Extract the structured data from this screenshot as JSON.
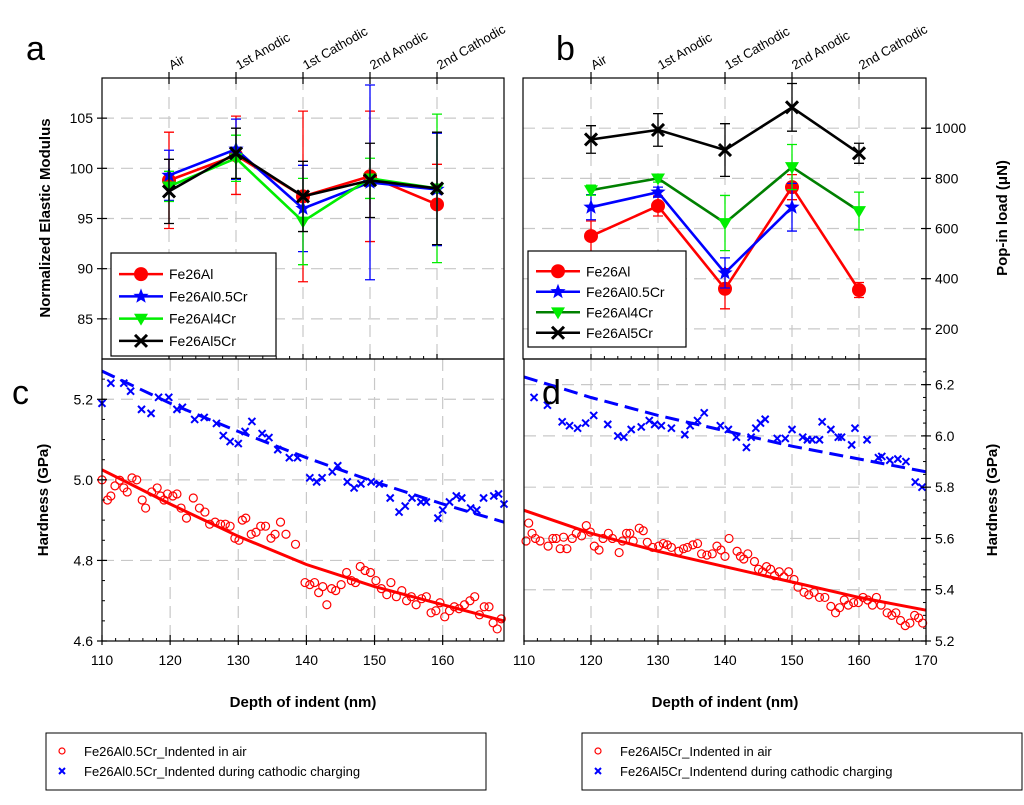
{
  "chart_data": [
    {
      "id": "a",
      "type": "line",
      "panel_label": "a",
      "title": "",
      "xlabel": "",
      "ylabel": "Normalized Elastic Modulus",
      "x_axis_position": "top",
      "y_axis_position": "left",
      "categories": [
        "Air",
        "1st Anodic",
        "1st Cathodic",
        "2nd Anodic",
        "2nd Cathodic"
      ],
      "ylim": [
        81,
        109
      ],
      "yticks": [
        85,
        90,
        95,
        100,
        105
      ],
      "grid": true,
      "legend_position": "bottom-left",
      "series": [
        {
          "name": "Fe26Al",
          "color": "#ff0000",
          "marker": "circle",
          "values": [
            98.8,
            101.3,
            97.2,
            99.2,
            96.4
          ],
          "errors": [
            4.8,
            3.9,
            8.5,
            6.5,
            4.0
          ]
        },
        {
          "name": "Fe26Al0.5Cr",
          "color": "#0000ff",
          "marker": "star",
          "values": [
            99.3,
            101.9,
            96.0,
            98.6,
            97.9
          ],
          "errors": [
            2.5,
            3.0,
            4.3,
            9.7,
            5.6
          ]
        },
        {
          "name": "Fe26Al4Cr",
          "color": "#00ee00",
          "marker": "triangle-down",
          "values": [
            98.2,
            101.0,
            94.7,
            99.0,
            98.0
          ],
          "errors": [
            1.5,
            2.3,
            4.3,
            2.0,
            7.4
          ]
        },
        {
          "name": "Fe26Al5Cr",
          "color": "#000000",
          "marker": "x",
          "values": [
            97.7,
            101.5,
            97.2,
            98.8,
            98.0
          ],
          "errors": [
            3.2,
            2.5,
            3.5,
            3.7,
            5.6
          ]
        }
      ]
    },
    {
      "id": "b",
      "type": "line",
      "panel_label": "b",
      "title": "",
      "xlabel": "",
      "ylabel": "Pop-in load (μN)",
      "x_axis_position": "top",
      "y_axis_position": "right",
      "categories": [
        "Air",
        "1st Anodic",
        "1st Cathodic",
        "2nd Anodic",
        "2nd Cathodic"
      ],
      "ylim": [
        80,
        1200
      ],
      "yticks": [
        200,
        400,
        600,
        800,
        1000
      ],
      "grid": true,
      "legend_position": "bottom-left",
      "series": [
        {
          "name": "Fe26Al",
          "color": "#ff0000",
          "line_color": "#ff0000",
          "marker": "circle",
          "values": [
            570,
            690,
            360,
            765,
            355
          ],
          "errors": [
            60,
            40,
            80,
            50,
            30
          ]
        },
        {
          "name": "Fe26Al0.5Cr",
          "color": "#0000ff",
          "line_color": "#0000ff",
          "marker": "star",
          "values": [
            685,
            745,
            423,
            685,
            null
          ],
          "errors": [
            50,
            20,
            60,
            95,
            null
          ]
        },
        {
          "name": "Fe26Al4Cr",
          "color": "#00ee00",
          "line_color": "#008000",
          "marker": "triangle-down",
          "values": [
            753,
            800,
            622,
            845,
            670
          ],
          "errors": [
            20,
            15,
            110,
            90,
            75
          ]
        },
        {
          "name": "Fe26Al5Cr",
          "color": "#000000",
          "line_color": "#000000",
          "marker": "x",
          "values": [
            955,
            993,
            913,
            1083,
            900
          ],
          "errors": [
            55,
            65,
            105,
            95,
            40
          ]
        }
      ]
    },
    {
      "id": "c",
      "type": "scatter",
      "panel_label": "c",
      "title": "",
      "xlabel": "Depth of indent (nm)",
      "ylabel": "Hardness (GPa)",
      "y_axis_position": "left",
      "xlim": [
        110,
        169
      ],
      "ylim": [
        4.6,
        5.3
      ],
      "xticks": [
        110,
        120,
        130,
        140,
        150,
        160
      ],
      "yticks": [
        4.6,
        4.8,
        5.0,
        5.2
      ],
      "grid": true,
      "legend_position": "below",
      "series": [
        {
          "name": "Fe26Al0.5Cr_Indented in air",
          "color": "#ff0000",
          "marker": "open-circle",
          "x": [
            110,
            110.8,
            111.3,
            111.9,
            112.6,
            113.2,
            113.7,
            114.4,
            115.1,
            115.9,
            116.4,
            117.3,
            118.1,
            118.6,
            119.1,
            119.6,
            120.4,
            121,
            121.6,
            122.4,
            123.4,
            124.3,
            125.1,
            125.8,
            126.6,
            127.4,
            128.1,
            128.8,
            129.5,
            130.1,
            130.6,
            131.1,
            131.9,
            132.6,
            133.3,
            134,
            134.8,
            135.4,
            136.2,
            137,
            138.4,
            139.8,
            140.5,
            141.2,
            141.8,
            142.4,
            143,
            143.7,
            144.3,
            145.1,
            145.9,
            146.6,
            147.2,
            147.9,
            148.6,
            149.4,
            150.2,
            151,
            151.8,
            152.4,
            153.2,
            154,
            154.7,
            155.4,
            156.1,
            156.9,
            157.6,
            158.3,
            159,
            159.6,
            160.3,
            161,
            161.7,
            162.4,
            163.2,
            164,
            164.7,
            165.4,
            166.1,
            166.8,
            167.4,
            168,
            168.6
          ],
          "y": [
            5.0,
            4.95,
            4.96,
            4.985,
            4.999,
            4.98,
            4.97,
            5.005,
            5.0,
            4.95,
            4.93,
            4.97,
            4.98,
            4.96,
            4.95,
            4.965,
            4.96,
            4.965,
            4.93,
            4.905,
            4.955,
            4.93,
            4.92,
            4.89,
            4.895,
            4.89,
            4.89,
            4.885,
            4.855,
            4.85,
            4.9,
            4.905,
            4.865,
            4.87,
            4.885,
            4.885,
            4.855,
            4.865,
            4.895,
            4.865,
            4.84,
            4.745,
            4.74,
            4.745,
            4.72,
            4.735,
            4.69,
            4.73,
            4.725,
            4.74,
            4.77,
            4.75,
            4.745,
            4.785,
            4.775,
            4.77,
            4.75,
            4.73,
            4.715,
            4.745,
            4.71,
            4.725,
            4.7,
            4.71,
            4.69,
            4.705,
            4.71,
            4.67,
            4.675,
            4.695,
            4.66,
            4.675,
            4.685,
            4.68,
            4.69,
            4.7,
            4.71,
            4.665,
            4.685,
            4.685,
            4.645,
            4.63,
            4.655
          ],
          "fit": {
            "style": "solid",
            "x": [
              110,
              120,
              130,
              140,
              150,
              160,
              169
            ],
            "y": [
              5.025,
              4.94,
              4.86,
              4.79,
              4.735,
              4.69,
              4.65
            ]
          }
        },
        {
          "name": "Fe26Al0.5Cr_Indented during cathodic charging",
          "color": "#0000ff",
          "marker": "x",
          "x": [
            110,
            111.3,
            113.2,
            114.2,
            115.8,
            117.2,
            118.3,
            119.8,
            121,
            121.8,
            123.6,
            125,
            126.8,
            127.8,
            128.8,
            130,
            131,
            132,
            133.5,
            134.5,
            135.8,
            137.5,
            138.7,
            140.5,
            141.5,
            142.3,
            143.8,
            144.6,
            146,
            147,
            148,
            149.5,
            150.7,
            152.3,
            153.6,
            154.5,
            155.5,
            156.8,
            157.6,
            159.3,
            160,
            161,
            162,
            162.8,
            164.1,
            165,
            166,
            167.5,
            168.2,
            169
          ],
          "y": [
            5.19,
            5.24,
            5.24,
            5.22,
            5.175,
            5.165,
            5.205,
            5.205,
            5.175,
            5.18,
            5.15,
            5.155,
            5.14,
            5.11,
            5.095,
            5.09,
            5.12,
            5.145,
            5.115,
            5.105,
            5.075,
            5.055,
            5.055,
            5.005,
            4.995,
            5.005,
            5.02,
            5.035,
            4.995,
            4.98,
            4.99,
            4.995,
            4.99,
            4.955,
            4.92,
            4.935,
            4.955,
            4.945,
            4.945,
            4.905,
            4.925,
            4.945,
            4.96,
            4.955,
            4.93,
            4.925,
            4.955,
            4.96,
            4.965,
            4.94
          ],
          "fit": {
            "style": "dashed",
            "x": [
              110,
              120,
              130,
              140,
              150,
              160,
              169
            ],
            "y": [
              5.27,
              5.19,
              5.12,
              5.055,
              4.995,
              4.94,
              4.895
            ]
          }
        }
      ]
    },
    {
      "id": "d",
      "type": "scatter",
      "panel_label": "d",
      "title": "",
      "xlabel": "Depth of indent (nm)",
      "ylabel": "Hardness (GPa)",
      "y_axis_position": "right",
      "xlim": [
        110,
        170
      ],
      "ylim": [
        5.2,
        6.3
      ],
      "xticks": [
        110,
        120,
        130,
        140,
        150,
        160,
        170
      ],
      "yticks": [
        5.2,
        5.4,
        5.6,
        5.8,
        6.0,
        6.2
      ],
      "grid": true,
      "legend_position": "below",
      "series": [
        {
          "name": "Fe26Al5Cr_Indented in air",
          "color": "#ff0000",
          "marker": "open-circle",
          "x": [
            110.3,
            110.7,
            111.2,
            111.7,
            112.4,
            113.6,
            114.3,
            114.8,
            115.4,
            115.9,
            116.4,
            117.2,
            117.8,
            118.6,
            119.3,
            119.9,
            120.5,
            121.2,
            121.8,
            122.6,
            123.2,
            124.2,
            124.7,
            125.3,
            125.8,
            126.3,
            127.2,
            127.8,
            128.4,
            129.2,
            130.1,
            130.8,
            131.4,
            132,
            133.1,
            133.8,
            134.4,
            135.2,
            135.9,
            136.5,
            137.3,
            138.1,
            138.8,
            139.4,
            140,
            140.6,
            141.8,
            142.3,
            142.8,
            143.4,
            144.4,
            145,
            145.6,
            146.2,
            146.8,
            147.4,
            148.1,
            148.8,
            149.5,
            150.3,
            150.9,
            151.8,
            152.5,
            153.3,
            154.1,
            154.9,
            155.8,
            156.5,
            157.1,
            157.8,
            158.4,
            159.2,
            159.9,
            160.6,
            161.3,
            162,
            162.6,
            163.3,
            164.2,
            164.9,
            165.5,
            166.2,
            166.9,
            167.6,
            168.3,
            168.9,
            169.5
          ],
          "y": [
            5.59,
            5.66,
            5.62,
            5.6,
            5.59,
            5.57,
            5.6,
            5.6,
            5.56,
            5.605,
            5.56,
            5.6,
            5.62,
            5.61,
            5.65,
            5.625,
            5.57,
            5.555,
            5.6,
            5.62,
            5.6,
            5.545,
            5.59,
            5.62,
            5.62,
            5.59,
            5.64,
            5.63,
            5.585,
            5.565,
            5.57,
            5.58,
            5.575,
            5.565,
            5.55,
            5.56,
            5.565,
            5.575,
            5.58,
            5.54,
            5.535,
            5.54,
            5.57,
            5.555,
            5.53,
            5.6,
            5.55,
            5.53,
            5.52,
            5.54,
            5.51,
            5.48,
            5.47,
            5.49,
            5.48,
            5.455,
            5.47,
            5.45,
            5.47,
            5.44,
            5.41,
            5.39,
            5.38,
            5.39,
            5.37,
            5.37,
            5.335,
            5.31,
            5.33,
            5.36,
            5.34,
            5.35,
            5.35,
            5.37,
            5.36,
            5.34,
            5.37,
            5.34,
            5.31,
            5.3,
            5.31,
            5.28,
            5.26,
            5.27,
            5.3,
            5.29,
            5.27
          ],
          "fit": {
            "style": "solid",
            "x": [
              110,
              120,
              130,
              140,
              150,
              160,
              170
            ],
            "y": [
              5.71,
              5.62,
              5.55,
              5.49,
              5.43,
              5.37,
              5.32
            ]
          }
        },
        {
          "name": "Fe26Al5Cr_Indentend during cathodic charging",
          "color": "#0000ff",
          "marker": "x",
          "x": [
            111.5,
            113.5,
            115.7,
            116.8,
            118,
            119.2,
            120.4,
            122.5,
            124,
            124.9,
            126,
            127.5,
            128.7,
            129.5,
            130.5,
            132,
            134,
            134.8,
            135.9,
            136.9,
            139.3,
            140.5,
            141.7,
            143.2,
            143.9,
            144.6,
            145.3,
            146,
            147.8,
            149,
            150,
            151.6,
            152.3,
            153,
            154.1,
            154.5,
            155.8,
            156.9,
            157.4,
            158.9,
            159.4,
            161.2,
            162.9,
            163.4,
            164.6,
            165.8,
            167,
            168.4,
            169.4
          ],
          "y": [
            6.15,
            6.12,
            6.055,
            6.04,
            6.03,
            6.05,
            6.08,
            6.045,
            6.0,
            5.995,
            6.025,
            6.035,
            6.06,
            6.045,
            6.04,
            6.03,
            6.005,
            6.04,
            6.06,
            6.09,
            6.04,
            6.025,
            5.995,
            5.955,
            5.995,
            6.03,
            6.05,
            6.065,
            5.99,
            5.99,
            6.025,
            5.995,
            5.985,
            5.985,
            5.985,
            6.055,
            6.025,
            5.995,
            5.995,
            5.965,
            6.03,
            5.985,
            5.915,
            5.92,
            5.905,
            5.91,
            5.9,
            5.82,
            5.8
          ],
          "fit": {
            "style": "dashed",
            "x": [
              110,
              120,
              130,
              140,
              150,
              160,
              170
            ],
            "y": [
              6.23,
              6.15,
              6.08,
              6.02,
              5.96,
              5.91,
              5.86
            ]
          }
        }
      ]
    }
  ],
  "bottom_legends": [
    {
      "items": [
        {
          "marker": "o",
          "color": "#ff0000",
          "label": "Fe26Al0.5Cr_Indented in air"
        },
        {
          "marker": "x",
          "color": "#0000ff",
          "label": "Fe26Al0.5Cr_Indented during cathodic charging"
        }
      ]
    },
    {
      "items": [
        {
          "marker": "o",
          "color": "#ff0000",
          "label": "Fe26Al5Cr_Indented in air"
        },
        {
          "marker": "x",
          "color": "#0000ff",
          "label": "Fe26Al5Cr_Indentend during cathodic charging"
        }
      ]
    }
  ]
}
